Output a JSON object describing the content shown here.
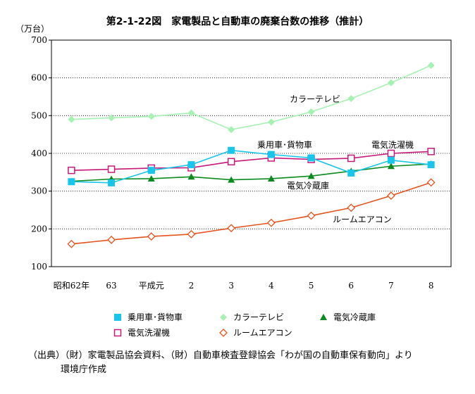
{
  "chart_data": {
    "type": "line",
    "title": "第2-1-22図　家電製品と自動車の廃棄台数の推移（推計）",
    "unit_label": "（万台）",
    "ylim": [
      100,
      700
    ],
    "yticks": [
      100,
      200,
      300,
      400,
      500,
      600,
      700
    ],
    "categories": [
      "昭和62年",
      "63",
      "平成元",
      "2",
      "3",
      "4",
      "5",
      "6",
      "7",
      "8"
    ],
    "grid": true,
    "legend_position": "bottom",
    "series": [
      {
        "name": "乗用車･貨物車",
        "marker": "square",
        "color": "#17c6ea",
        "values": [
          325,
          322,
          355,
          370,
          408,
          397,
          388,
          348,
          382,
          370
        ]
      },
      {
        "name": "カラーテレビ",
        "marker": "diamond",
        "color": "#a6f2b2",
        "values": [
          490,
          494,
          498,
          507,
          463,
          483,
          510,
          545,
          587,
          633
        ]
      },
      {
        "name": "電気冷蔵庫",
        "marker": "triangle",
        "color": "#0a8a1e",
        "values": [
          326,
          332,
          333,
          338,
          330,
          333,
          340,
          353,
          366,
          372
        ]
      },
      {
        "name": "電気洗濯機",
        "marker": "square-open",
        "color": "#c8187a",
        "values": [
          355,
          358,
          361,
          362,
          378,
          388,
          384,
          387,
          400,
          405
        ]
      },
      {
        "name": "ルームエアコン",
        "marker": "diamond-open",
        "color": "#e6521d",
        "values": [
          160,
          171,
          180,
          186,
          202,
          216,
          235,
          256,
          288,
          323
        ]
      }
    ],
    "annotations": [
      {
        "text": "カラーテレビ",
        "series": 1
      },
      {
        "text": "乗用車･貨物車",
        "series": 0
      },
      {
        "text": "電気洗濯機",
        "series": 3
      },
      {
        "text": "電気冷蔵庫",
        "series": 2
      },
      {
        "text": "ルームエアコン",
        "series": 4
      }
    ]
  },
  "source_note": {
    "line1": "（出典）（財）家電製品協会資料、（財）自動車検査登録協会「わが国の自動車保有動向」より",
    "line2": "環境庁作成"
  }
}
